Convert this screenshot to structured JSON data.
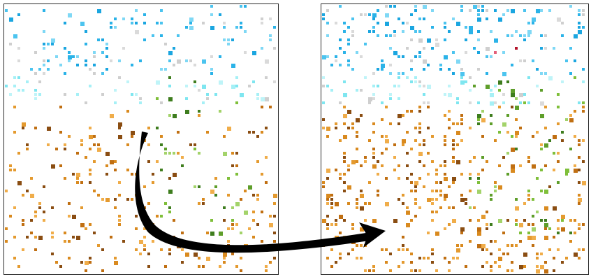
{
  "figure": {
    "panels": [
      {
        "id": "left",
        "pattern": "scattered-pixels",
        "density": 0.11
      },
      {
        "id": "right",
        "pattern": "scattered-pixels",
        "density": 0.17
      }
    ],
    "arrow": {
      "direction": "left-to-right",
      "shape": "curved-down-then-right",
      "color": "#000000"
    },
    "palette": {
      "sky": [
        "#1ba6e0",
        "#2bb3e8",
        "#4cc4ef",
        "#7fd8f5"
      ],
      "cyan": [
        "#7fe6f0",
        "#a6f0f6",
        "#bff4f8"
      ],
      "gray": [
        "#cfcfcf",
        "#dadada"
      ],
      "red": [
        "#b3122a",
        "#e3607a"
      ],
      "green": [
        "#3e7d1e",
        "#5e9e2a",
        "#7fbf3a",
        "#a3d36a"
      ],
      "orange": [
        "#d98a1f",
        "#e49a2f",
        "#f0ad4a",
        "#c06f12",
        "#8a4d12"
      ]
    }
  }
}
